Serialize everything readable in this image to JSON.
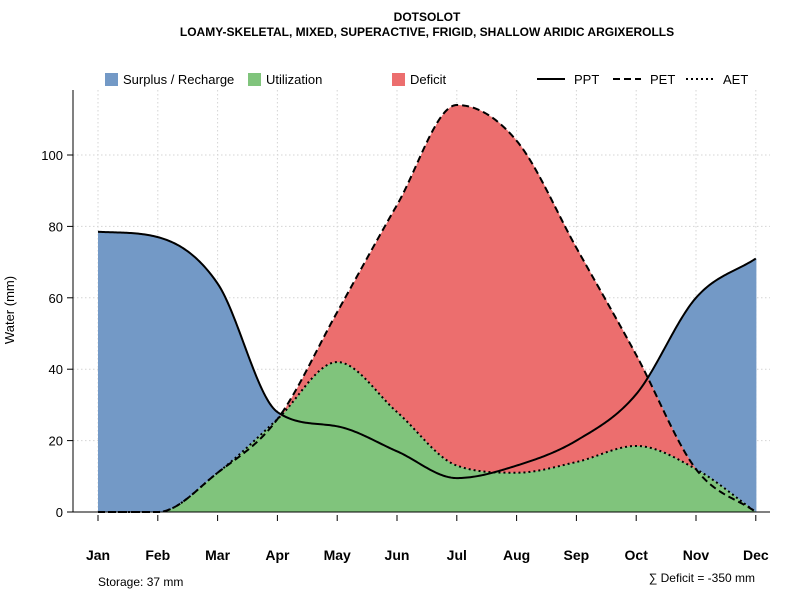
{
  "chart_data": {
    "type": "area",
    "title": "DOTSOLOT",
    "subtitle": "LOAMY-SKELETAL, MIXED, SUPERACTIVE, FRIGID, SHALLOW ARIDIC ARGIXEROLLS",
    "ylabel": "Water (mm)",
    "xlabel": "",
    "categories": [
      "Jan",
      "Feb",
      "Mar",
      "Apr",
      "May",
      "Jun",
      "Jul",
      "Aug",
      "Sep",
      "Oct",
      "Nov",
      "Dec"
    ],
    "ylim": [
      0,
      117
    ],
    "yticks": [
      "0",
      "20",
      "40",
      "60",
      "80",
      "100"
    ],
    "grid": true,
    "series": [
      {
        "name": "PPT",
        "style": "solid",
        "values": [
          78.5,
          77,
          64,
          28,
          24,
          17,
          9.5,
          13,
          20,
          33,
          60,
          71
        ]
      },
      {
        "name": "PET",
        "style": "dashed",
        "values": [
          0,
          0,
          11,
          26,
          56,
          86,
          114,
          104,
          74,
          44,
          12,
          0
        ]
      },
      {
        "name": "AET",
        "style": "dotted",
        "values": [
          0,
          0,
          11,
          26,
          42,
          28,
          13,
          11,
          14,
          18.5,
          12,
          0
        ]
      }
    ],
    "legend": {
      "placement": "top",
      "areas": [
        {
          "label": "Surplus / Recharge",
          "color": "#7399C6"
        },
        {
          "label": "Utilization",
          "color": "#80C47C"
        },
        {
          "label": "Deficit",
          "color": "#EC6E6E"
        }
      ],
      "lines": [
        {
          "label": "PPT",
          "style": "solid"
        },
        {
          "label": "PET",
          "style": "dashed"
        },
        {
          "label": "AET",
          "style": "dotted"
        }
      ]
    },
    "annotations": {
      "storage": "Storage: 37 mm",
      "deficit": "∑ Deficit = -350 mm"
    }
  }
}
